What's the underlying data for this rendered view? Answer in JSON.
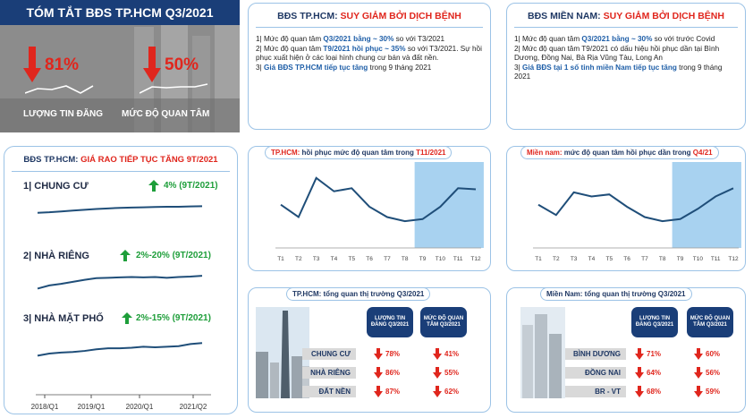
{
  "summary": {
    "title": "TÓM TẮT BĐS TP.HCM Q3/2021",
    "listing_pct": "81%",
    "listing_label": "LƯỢNG TIN ĐĂNG",
    "interest_pct": "50%",
    "interest_label": "MỨC ĐỘ QUAN TÂM"
  },
  "hcm_decline": {
    "title_prefix": "BĐS TP.HCM: ",
    "title_suffix": "SUY GIẢM BỞI DỊCH BỆNH",
    "l1_a": "1| Mức độ quan tâm ",
    "l1_b": "Q3/2021 bằng ~ 30%",
    "l1_c": " so với T3/2021",
    "l2_a": "2| Mức độ quan tâm ",
    "l2_b": "T9/2021 hồi phục ~ 35%",
    "l2_c": " so với T3/2021. Sự hồi phục xuất hiện ở các loại hình chung cư bán và đất nền.",
    "l3_a": "3| ",
    "l3_b": "Giá BĐS TP.HCM tiếp tục tăng",
    "l3_c": " trong 9 tháng 2021"
  },
  "south_decline": {
    "title_prefix": "BĐS MIỀN NAM: ",
    "title_suffix": "SUY GIẢM BỞI DỊCH BỆNH",
    "l1_a": "1| Mức độ quan tâm ",
    "l1_b": "Q3/2021 bằng ~ 30%",
    "l1_c": " so với trước Covid",
    "l2": "2| Mức độ quan tâm T9/2021 có dấu hiệu hồi phục dần tại Bình Dương, Đồng Nai, Bà Rịa Vũng Tàu, Long An",
    "l3_a": "3| ",
    "l3_b": "Giá BĐS tại 1 số tỉnh miền Nam tiếp tục tăng",
    "l3_c": " trong 9 tháng 2021"
  },
  "price_panel": {
    "title_prefix": "BĐS TP.HCM: ",
    "title_suffix": "GIÁ RAO TIẾP TỤC TĂNG 9T/2021",
    "items": [
      {
        "label": "1| CHUNG CƯ",
        "change": "4% (9T/2021)"
      },
      {
        "label": "2| NHÀ RIÊNG",
        "change": "2%-20% (9T/2021)"
      },
      {
        "label": "3| NHÀ MẶT PHỐ",
        "change": "2%-15% (9T/2021)"
      }
    ],
    "x_ticks": [
      "2018/Q1",
      "2019/Q1",
      "2020/Q1",
      "2021/Q2"
    ]
  },
  "hcm_chart": {
    "title_a": "TP.HCM: ",
    "title_b": "hồi phục mức độ quan tâm trong ",
    "title_c": "T11/2021"
  },
  "south_chart": {
    "title_a": "Miền nam: ",
    "title_b": "mức độ quan tâm hồi phục dần trong ",
    "title_c": "Q4/21"
  },
  "hcm_overview": {
    "title": "TP.HCM: tổng quan thị trường Q3/2021",
    "col1": "LƯỢNG TIN ĐĂNG Q3/2021",
    "col2": "MỨC ĐỘ QUAN TÂM Q3/2021",
    "rows": [
      {
        "label": "CHUNG CƯ",
        "v1": "78%",
        "v2": "41%"
      },
      {
        "label": "NHÀ RIÊNG",
        "v1": "86%",
        "v2": "55%"
      },
      {
        "label": "ĐẤT NỀN",
        "v1": "87%",
        "v2": "62%"
      }
    ]
  },
  "south_overview": {
    "title": "Miền Nam: tổng quan thị trường Q3/2021",
    "col1": "LƯỢNG TIN ĐĂNG Q3/2021",
    "col2": "MỨC ĐỘ QUAN TÂM Q3/2021",
    "rows": [
      {
        "label": "BÌNH DƯƠNG",
        "v1": "71%",
        "v2": "60%"
      },
      {
        "label": "ĐỒNG NAI",
        "v1": "64%",
        "v2": "56%"
      },
      {
        "label": "BR - VT",
        "v1": "68%",
        "v2": "59%"
      }
    ]
  },
  "chart_data": [
    {
      "type": "line",
      "title": "TP.HCM: hồi phục mức độ quan tâm trong T11/2021",
      "x": [
        "T1",
        "T2",
        "T3",
        "T4",
        "T5",
        "T6",
        "T7",
        "T8",
        "T9",
        "T10",
        "T11",
        "T12"
      ],
      "series": [
        {
          "values": [
            42,
            30,
            68,
            55,
            58,
            40,
            30,
            26,
            28,
            40,
            58,
            57
          ]
        }
      ],
      "highlight": [
        "T9",
        "T12"
      ],
      "ylim": [
        0,
        80
      ],
      "color": "#1f4e79",
      "highlight_color": "#a8d2f0"
    },
    {
      "type": "line",
      "title": "Miền nam: mức độ quan tâm hồi phục dần trong Q4/21",
      "x": [
        "T1",
        "T2",
        "T3",
        "T4",
        "T5",
        "T6",
        "T7",
        "T8",
        "T9",
        "T10",
        "T11",
        "T12"
      ],
      "series": [
        {
          "values": [
            42,
            32,
            54,
            50,
            52,
            40,
            30,
            26,
            28,
            38,
            50,
            58
          ]
        }
      ],
      "highlight": [
        "T9",
        "T12"
      ],
      "ylim": [
        0,
        80
      ],
      "color": "#1f4e79",
      "highlight_color": "#a8d2f0"
    },
    {
      "type": "line",
      "title": "1| CHUNG CƯ",
      "series": [
        {
          "values": [
            30,
            32,
            35,
            38,
            41,
            44,
            46,
            48,
            49,
            50,
            51,
            52,
            52,
            53,
            54
          ]
        }
      ],
      "ylim": [
        0,
        100
      ],
      "color": "#1f4e79"
    },
    {
      "type": "line",
      "title": "2| NHÀ RIÊNG",
      "series": [
        {
          "values": [
            28,
            36,
            40,
            45,
            50,
            54,
            55,
            56,
            57,
            56,
            57,
            55,
            57,
            58,
            60
          ]
        }
      ],
      "ylim": [
        0,
        100
      ],
      "color": "#1f4e79"
    },
    {
      "type": "line",
      "title": "3| NHÀ MẶT PHỐ",
      "series": [
        {
          "values": [
            30,
            34,
            36,
            37,
            39,
            42,
            44,
            44,
            45,
            47,
            46,
            47,
            48,
            52,
            54
          ]
        }
      ],
      "ylim": [
        0,
        100
      ],
      "color": "#1f4e79"
    }
  ]
}
